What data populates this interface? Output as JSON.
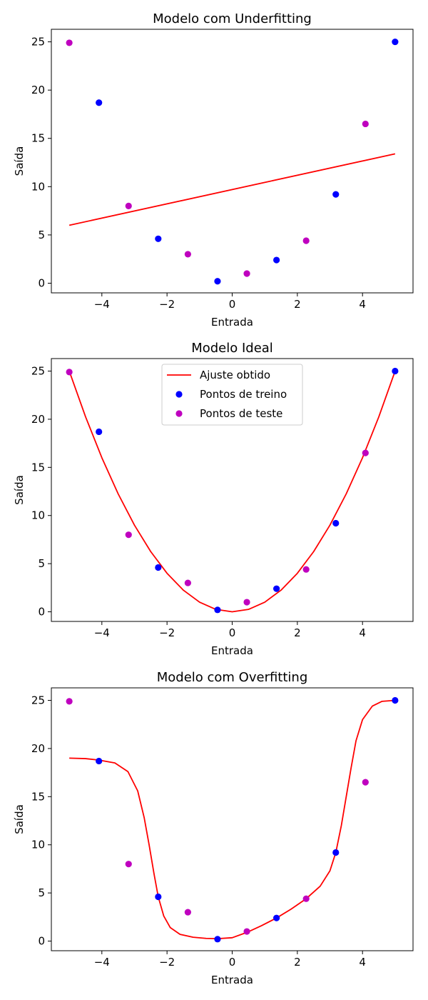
{
  "figure": {
    "colors": {
      "fit": "#ff0000",
      "train": "#0000ff",
      "test": "#bf00bf",
      "axes": "#000000",
      "background": "#ffffff"
    }
  },
  "chart_data": [
    {
      "type": "scatter",
      "title": "Modelo com Underfitting",
      "xlabel": "Entrada",
      "ylabel": "Saída",
      "xlim": [
        -5.55,
        5.55
      ],
      "ylim": [
        -1.0,
        26.3
      ],
      "xticks": [
        -4,
        -2,
        0,
        2,
        4
      ],
      "xtick_labels": [
        "−4",
        "−2",
        "0",
        "2",
        "4"
      ],
      "yticks": [
        0,
        5,
        10,
        15,
        20,
        25
      ],
      "ytick_labels": [
        "0",
        "5",
        "10",
        "15",
        "20",
        "25"
      ],
      "grid": false,
      "legend": null,
      "series": [
        {
          "kind": "line",
          "color": "#ff0000",
          "x": [
            -5.0,
            5.0
          ],
          "y": [
            6.0,
            13.4
          ]
        },
        {
          "kind": "scatter",
          "color": "#0000ff",
          "x": [
            -4.09,
            -2.27,
            -0.45,
            1.36,
            3.18,
            5.0
          ],
          "y": [
            18.7,
            4.6,
            0.2,
            2.4,
            9.2,
            25.0
          ]
        },
        {
          "kind": "scatter",
          "color": "#bf00bf",
          "x": [
            -5.0,
            -3.18,
            -1.36,
            0.45,
            2.27,
            4.09
          ],
          "y": [
            24.9,
            8.0,
            3.0,
            1.0,
            4.4,
            16.5
          ]
        }
      ]
    },
    {
      "type": "scatter",
      "title": "Modelo Ideal",
      "xlabel": "Entrada",
      "ylabel": "Saída",
      "xlim": [
        -5.55,
        5.55
      ],
      "ylim": [
        -1.0,
        26.3
      ],
      "xticks": [
        -4,
        -2,
        0,
        2,
        4
      ],
      "xtick_labels": [
        "−4",
        "−2",
        "0",
        "2",
        "4"
      ],
      "yticks": [
        0,
        5,
        10,
        15,
        20,
        25
      ],
      "ytick_labels": [
        "0",
        "5",
        "10",
        "15",
        "20",
        "25"
      ],
      "grid": false,
      "legend": {
        "position": "upper center",
        "entries": [
          {
            "label": "Ajuste obtido",
            "kind": "line",
            "color": "#ff0000"
          },
          {
            "label": "Pontos de treino",
            "kind": "marker",
            "color": "#0000ff"
          },
          {
            "label": "Pontos de teste",
            "kind": "marker",
            "color": "#bf00bf"
          }
        ]
      },
      "series": [
        {
          "kind": "line",
          "color": "#ff0000",
          "x": [
            -5.0,
            -4.5,
            -4.0,
            -3.5,
            -3.0,
            -2.5,
            -2.0,
            -1.5,
            -1.0,
            -0.5,
            0.0,
            0.5,
            1.0,
            1.5,
            2.0,
            2.5,
            3.0,
            3.5,
            4.0,
            4.5,
            5.0
          ],
          "y": [
            25.0,
            20.25,
            16.0,
            12.25,
            9.0,
            6.25,
            4.0,
            2.25,
            1.0,
            0.25,
            0.0,
            0.25,
            1.0,
            2.25,
            4.0,
            6.25,
            9.0,
            12.25,
            16.0,
            20.25,
            25.0
          ]
        },
        {
          "kind": "scatter",
          "color": "#0000ff",
          "x": [
            -4.09,
            -2.27,
            -0.45,
            1.36,
            3.18,
            5.0
          ],
          "y": [
            18.7,
            4.6,
            0.2,
            2.4,
            9.2,
            25.0
          ]
        },
        {
          "kind": "scatter",
          "color": "#bf00bf",
          "x": [
            -5.0,
            -3.18,
            -1.36,
            0.45,
            2.27,
            4.09
          ],
          "y": [
            24.9,
            8.0,
            3.0,
            1.0,
            4.4,
            16.5
          ]
        }
      ]
    },
    {
      "type": "scatter",
      "title": "Modelo com Overfitting",
      "xlabel": "Entrada",
      "ylabel": "Saída",
      "xlim": [
        -5.55,
        5.55
      ],
      "ylim": [
        -1.0,
        26.3
      ],
      "xticks": [
        -4,
        -2,
        0,
        2,
        4
      ],
      "xtick_labels": [
        "−4",
        "−2",
        "0",
        "2",
        "4"
      ],
      "yticks": [
        0,
        5,
        10,
        15,
        20,
        25
      ],
      "ytick_labels": [
        "0",
        "5",
        "10",
        "15",
        "20",
        "25"
      ],
      "grid": false,
      "legend": null,
      "series": [
        {
          "kind": "line",
          "color": "#ff0000",
          "x": [
            -5.0,
            -4.5,
            -4.09,
            -3.6,
            -3.2,
            -2.9,
            -2.7,
            -2.55,
            -2.4,
            -2.27,
            -2.1,
            -1.9,
            -1.6,
            -1.2,
            -0.8,
            -0.45,
            0.0,
            0.45,
            0.9,
            1.36,
            1.8,
            2.27,
            2.7,
            3.0,
            3.18,
            3.35,
            3.5,
            3.65,
            3.8,
            4.0,
            4.3,
            4.6,
            5.0
          ],
          "y": [
            19.0,
            18.95,
            18.8,
            18.5,
            17.6,
            15.6,
            12.8,
            10.0,
            7.0,
            4.6,
            2.6,
            1.4,
            0.7,
            0.4,
            0.28,
            0.25,
            0.35,
            0.9,
            1.6,
            2.4,
            3.3,
            4.4,
            5.7,
            7.3,
            9.2,
            12.0,
            15.0,
            18.0,
            20.8,
            23.0,
            24.4,
            24.9,
            25.0
          ]
        },
        {
          "kind": "scatter",
          "color": "#0000ff",
          "x": [
            -4.09,
            -2.27,
            -0.45,
            1.36,
            3.18,
            5.0
          ],
          "y": [
            18.7,
            4.6,
            0.2,
            2.4,
            9.2,
            25.0
          ]
        },
        {
          "kind": "scatter",
          "color": "#bf00bf",
          "x": [
            -5.0,
            -3.18,
            -1.36,
            0.45,
            2.27,
            4.09
          ],
          "y": [
            24.9,
            8.0,
            3.0,
            1.0,
            4.4,
            16.5
          ]
        }
      ]
    }
  ]
}
